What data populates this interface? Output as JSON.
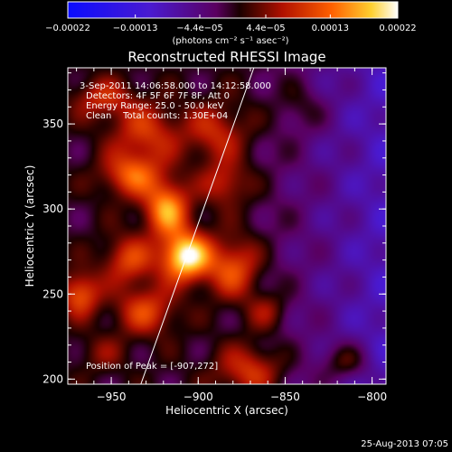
{
  "chart_data": {
    "type": "heatmap",
    "title": "Reconstructed RHESSI Image",
    "xlabel": "Heliocentric X (arcsec)",
    "ylabel": "Heliocentric Y (arcsec)",
    "xlim": [
      -975,
      -792
    ],
    "ylim": [
      197,
      383
    ],
    "x_ticks": [
      {
        "value": -950,
        "label": "−950"
      },
      {
        "value": -900,
        "label": "−900"
      },
      {
        "value": -850,
        "label": "−850"
      },
      {
        "value": -800,
        "label": "−800"
      }
    ],
    "y_ticks": [
      {
        "value": 200,
        "label": "200"
      },
      {
        "value": 250,
        "label": "250"
      },
      {
        "value": 300,
        "label": "300"
      },
      {
        "value": 350,
        "label": "350"
      }
    ],
    "colorbar": {
      "range": [
        -0.00022,
        0.00022
      ],
      "ticks": [
        {
          "value": -0.00022,
          "label": "−0.00022"
        },
        {
          "value": -0.00013,
          "label": "−0.00013"
        },
        {
          "value": -4.4e-05,
          "label": "−4.4e−05"
        },
        {
          "value": 4.4e-05,
          "label": "4.4e−05"
        },
        {
          "value": 0.00013,
          "label": "0.00013"
        },
        {
          "value": 0.00022,
          "label": "0.00022"
        }
      ],
      "units_label": "(photons cm⁻² s⁻¹ asec⁻²)"
    },
    "annotations": [
      "3-Sep-2011 14:06:58.000 to 14:12:58.000",
      "Detectors: 4F 5F 6F 7F 8F, Att 0",
      "Energy Range: 25.0 - 50.0 keV",
      "Clean    Total counts: 1.30E+04"
    ],
    "peak_label": "Position of Peak = [-907,272]",
    "peak_position": [
      -907,
      272
    ],
    "limb_line": [
      [
        -933,
        197
      ],
      [
        -868,
        383
      ]
    ],
    "sources": [
      {
        "x": -907,
        "y": 272,
        "sx": 10,
        "sy": 10,
        "amp": 0.00022
      },
      {
        "x": -918,
        "y": 300,
        "sx": 9,
        "sy": 11,
        "amp": 0.00016
      },
      {
        "x": -938,
        "y": 320,
        "sx": 12,
        "sy": 9,
        "amp": 0.00012
      },
      {
        "x": -930,
        "y": 345,
        "sx": 14,
        "sy": 12,
        "amp": 9e-05
      },
      {
        "x": -890,
        "y": 345,
        "sx": 12,
        "sy": 12,
        "amp": 8e-05
      },
      {
        "x": -885,
        "y": 315,
        "sx": 9,
        "sy": 9,
        "amp": 8e-05
      },
      {
        "x": -940,
        "y": 270,
        "sx": 10,
        "sy": 10,
        "amp": 0.0001
      },
      {
        "x": -880,
        "y": 265,
        "sx": 10,
        "sy": 12,
        "amp": 0.00011
      },
      {
        "x": -930,
        "y": 240,
        "sx": 12,
        "sy": 10,
        "amp": 0.0001
      },
      {
        "x": -968,
        "y": 250,
        "sx": 8,
        "sy": 9,
        "amp": 0.00012
      },
      {
        "x": -955,
        "y": 365,
        "sx": 12,
        "sy": 8,
        "amp": 8e-05
      },
      {
        "x": -870,
        "y": 205,
        "sx": 14,
        "sy": 10,
        "amp": 9e-05
      },
      {
        "x": -815,
        "y": 210,
        "sx": 10,
        "sy": 8,
        "amp": 8e-05
      },
      {
        "x": -860,
        "y": 240,
        "sx": 8,
        "sy": 8,
        "amp": 6e-05
      },
      {
        "x": -840,
        "y": 360,
        "sx": 10,
        "sy": 10,
        "amp": 4e-05
      },
      {
        "x": -955,
        "y": 215,
        "sx": 10,
        "sy": 8,
        "amp": 4e-05
      }
    ]
  },
  "footer": {
    "timestamp": "25-Aug-2013 07:05"
  }
}
